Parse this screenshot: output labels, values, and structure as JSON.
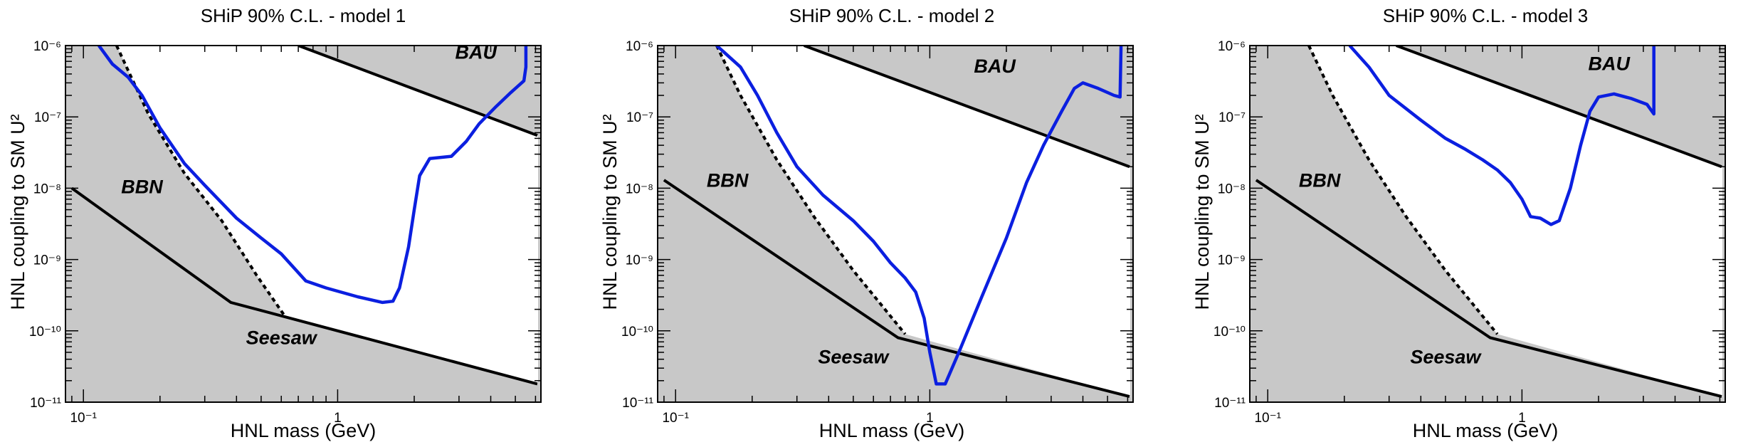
{
  "colors": {
    "shade": "#c8c8c8",
    "sensitivity": "#0b1fe0",
    "constraint": "#000000"
  },
  "chart_data": [
    {
      "type": "line",
      "title": "SHiP 90% C.L. - model 1",
      "xlabel": "HNL mass (GeV)",
      "ylabel": "HNL coupling to SM U²",
      "xscale": "log",
      "yscale": "log",
      "xlim": [
        0.085,
        6.3
      ],
      "ylim": [
        1e-11,
        1e-06
      ],
      "xticks": [
        {
          "v": 0.1,
          "label": "10⁻¹"
        },
        {
          "v": 1,
          "label": "1"
        }
      ],
      "yticks": [
        {
          "v": 1e-11,
          "label": "10⁻¹¹"
        },
        {
          "v": 1e-10,
          "label": "10⁻¹⁰"
        },
        {
          "v": 1e-09,
          "label": "10⁻⁹"
        },
        {
          "v": 1e-08,
          "label": "10⁻⁸"
        },
        {
          "v": 1e-07,
          "label": "10⁻⁷"
        },
        {
          "v": 1e-06,
          "label": "10⁻⁶"
        }
      ],
      "grid": false,
      "bau": {
        "label": "BAU",
        "boundary": [
          [
            0.7,
            1e-06
          ],
          [
            6.1,
            5.5e-08
          ]
        ],
        "label_at": [
          3.5,
          6.5e-07
        ]
      },
      "seesaw": {
        "label": "Seesaw",
        "boundary": [
          [
            0.09,
            1e-08
          ],
          [
            0.38,
            2.5e-10
          ],
          [
            6.1,
            1.8e-11
          ]
        ],
        "label_at": [
          0.6,
          6.5e-11
        ]
      },
      "bbn": {
        "label": "BBN",
        "boundary": [
          [
            0.135,
            1e-06
          ],
          [
            0.18,
            1.1e-07
          ],
          [
            0.25,
            1.6e-08
          ],
          [
            0.35,
            3.5e-09
          ],
          [
            0.48,
            6e-10
          ],
          [
            0.62,
            1.6e-10
          ]
        ],
        "label_at": [
          0.17,
          8.5e-09
        ]
      },
      "sensitivity": [
        [
          0.115,
          1e-06
        ],
        [
          0.13,
          5.5e-07
        ],
        [
          0.15,
          3.6e-07
        ],
        [
          0.17,
          2e-07
        ],
        [
          0.2,
          7e-08
        ],
        [
          0.25,
          2.2e-08
        ],
        [
          0.3,
          1.1e-08
        ],
        [
          0.4,
          3.8e-09
        ],
        [
          0.5,
          2e-09
        ],
        [
          0.6,
          1.2e-09
        ],
        [
          0.75,
          5e-10
        ],
        [
          0.9,
          4e-10
        ],
        [
          1.2,
          3e-10
        ],
        [
          1.5,
          2.5e-10
        ],
        [
          1.65,
          2.6e-10
        ],
        [
          1.75,
          4e-10
        ],
        [
          1.9,
          1.5e-09
        ],
        [
          2.0,
          5e-09
        ],
        [
          2.1,
          1.5e-08
        ],
        [
          2.3,
          2.6e-08
        ],
        [
          2.8,
          2.8e-08
        ],
        [
          3.2,
          4.5e-08
        ],
        [
          3.6,
          8e-08
        ],
        [
          4.2,
          1.4e-07
        ],
        [
          4.8,
          2.2e-07
        ],
        [
          5.4,
          3.2e-07
        ],
        [
          5.5,
          5e-07
        ],
        [
          5.5,
          1e-06
        ]
      ]
    },
    {
      "type": "line",
      "title": "SHiP 90% C.L. - model 2",
      "xlabel": "HNL mass (GeV)",
      "ylabel": "HNL coupling to SM U²",
      "xscale": "log",
      "yscale": "log",
      "xlim": [
        0.085,
        6.3
      ],
      "ylim": [
        1e-11,
        1e-06
      ],
      "xticks": [
        {
          "v": 0.1,
          "label": "10⁻¹"
        },
        {
          "v": 1,
          "label": "1"
        }
      ],
      "yticks": [
        {
          "v": 1e-11,
          "label": "10⁻¹¹"
        },
        {
          "v": 1e-10,
          "label": "10⁻¹⁰"
        },
        {
          "v": 1e-09,
          "label": "10⁻⁹"
        },
        {
          "v": 1e-08,
          "label": "10⁻⁸"
        },
        {
          "v": 1e-07,
          "label": "10⁻⁷"
        },
        {
          "v": 1e-06,
          "label": "10⁻⁶"
        }
      ],
      "grid": false,
      "bau": {
        "label": "BAU",
        "boundary": [
          [
            0.32,
            1e-06
          ],
          [
            6.1,
            2e-08
          ]
        ],
        "label_at": [
          1.8,
          4.2e-07
        ]
      },
      "seesaw": {
        "label": "Seesaw",
        "boundary": [
          [
            0.09,
            1.3e-08
          ],
          [
            0.75,
            8e-11
          ],
          [
            6.1,
            1.2e-11
          ]
        ],
        "label_at": [
          0.5,
          3.5e-11
        ]
      },
      "bbn": {
        "label": "BBN",
        "boundary": [
          [
            0.145,
            1e-06
          ],
          [
            0.18,
            2e-07
          ],
          [
            0.25,
            2.5e-08
          ],
          [
            0.35,
            4e-09
          ],
          [
            0.5,
            7e-10
          ],
          [
            0.8,
            9e-11
          ]
        ],
        "label_at": [
          0.16,
          1.05e-08
        ]
      },
      "sensitivity": [
        [
          0.145,
          1e-06
        ],
        [
          0.18,
          5e-07
        ],
        [
          0.21,
          2e-07
        ],
        [
          0.25,
          6e-08
        ],
        [
          0.3,
          2e-08
        ],
        [
          0.38,
          8e-09
        ],
        [
          0.5,
          3.5e-09
        ],
        [
          0.6,
          1.8e-09
        ],
        [
          0.7,
          9e-10
        ],
        [
          0.8,
          5.5e-10
        ],
        [
          0.88,
          3.5e-10
        ],
        [
          0.95,
          1.5e-10
        ],
        [
          1.0,
          5e-11
        ],
        [
          1.06,
          1.8e-11
        ],
        [
          1.15,
          1.8e-11
        ],
        [
          1.3,
          5e-11
        ],
        [
          1.6,
          3e-10
        ],
        [
          2.0,
          2e-09
        ],
        [
          2.4,
          1.2e-08
        ],
        [
          2.8,
          4e-08
        ],
        [
          3.3,
          1.2e-07
        ],
        [
          3.7,
          2.5e-07
        ],
        [
          4.0,
          3e-07
        ],
        [
          4.6,
          2.5e-07
        ],
        [
          5.3,
          2e-07
        ],
        [
          5.6,
          1.9e-07
        ],
        [
          5.65,
          1e-06
        ]
      ]
    },
    {
      "type": "line",
      "title": "SHiP 90% C.L. - model 3",
      "xlabel": "HNL mass (GeV)",
      "ylabel": "HNL coupling to SM U²",
      "xscale": "log",
      "yscale": "log",
      "xlim": [
        0.085,
        6.3
      ],
      "ylim": [
        1e-11,
        1e-06
      ],
      "xticks": [
        {
          "v": 0.1,
          "label": "10⁻¹"
        },
        {
          "v": 1,
          "label": "1"
        }
      ],
      "yticks": [
        {
          "v": 1e-11,
          "label": "10⁻¹¹"
        },
        {
          "v": 1e-10,
          "label": "10⁻¹⁰"
        },
        {
          "v": 1e-09,
          "label": "10⁻⁹"
        },
        {
          "v": 1e-08,
          "label": "10⁻⁸"
        },
        {
          "v": 1e-07,
          "label": "10⁻⁷"
        },
        {
          "v": 1e-06,
          "label": "10⁻⁶"
        }
      ],
      "grid": false,
      "bau": {
        "label": "BAU",
        "boundary": [
          [
            0.32,
            1e-06
          ],
          [
            6.1,
            2e-08
          ]
        ],
        "label_at": [
          2.2,
          4.5e-07
        ]
      },
      "seesaw": {
        "label": "Seesaw",
        "boundary": [
          [
            0.09,
            1.3e-08
          ],
          [
            0.75,
            8e-11
          ],
          [
            6.1,
            1.2e-11
          ]
        ],
        "label_at": [
          0.5,
          3.5e-11
        ]
      },
      "bbn": {
        "label": "BBN",
        "boundary": [
          [
            0.145,
            1e-06
          ],
          [
            0.18,
            2e-07
          ],
          [
            0.25,
            2.5e-08
          ],
          [
            0.35,
            4e-09
          ],
          [
            0.5,
            7e-10
          ],
          [
            0.8,
            9e-11
          ]
        ],
        "label_at": [
          0.16,
          1.05e-08
        ]
      },
      "sensitivity": [
        [
          0.21,
          1e-06
        ],
        [
          0.25,
          5e-07
        ],
        [
          0.3,
          2e-07
        ],
        [
          0.4,
          9e-08
        ],
        [
          0.5,
          5e-08
        ],
        [
          0.6,
          3.5e-08
        ],
        [
          0.7,
          2.5e-08
        ],
        [
          0.8,
          1.8e-08
        ],
        [
          0.9,
          1.2e-08
        ],
        [
          1.0,
          7e-09
        ],
        [
          1.08,
          4e-09
        ],
        [
          1.18,
          3.8e-09
        ],
        [
          1.3,
          3.1e-09
        ],
        [
          1.4,
          3.5e-09
        ],
        [
          1.55,
          1e-08
        ],
        [
          1.7,
          4e-08
        ],
        [
          1.85,
          1.2e-07
        ],
        [
          2.0,
          1.9e-07
        ],
        [
          2.3,
          2.1e-07
        ],
        [
          2.7,
          1.8e-07
        ],
        [
          3.1,
          1.5e-07
        ],
        [
          3.3,
          1.1e-07
        ],
        [
          3.3,
          1e-06
        ]
      ]
    }
  ]
}
